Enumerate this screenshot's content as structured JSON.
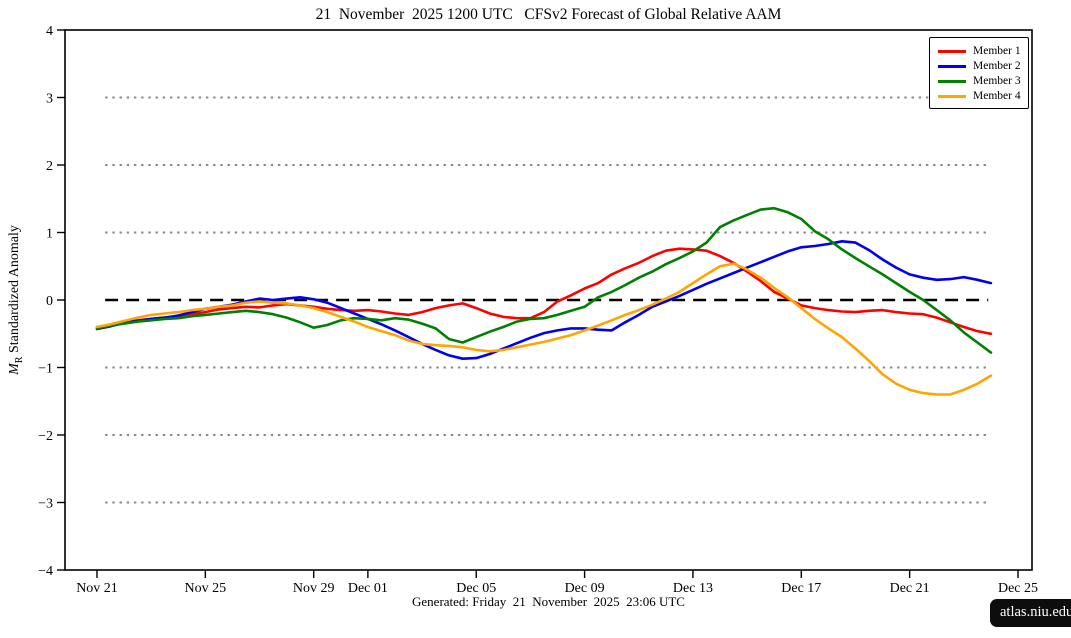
{
  "title": "21  November  2025 1200 UTC   CFSv2 Forecast of Global Relative AAM",
  "footer": "Generated: Friday  21  November  2025  23:06 UTC",
  "watermark": "atlas.niu.edu",
  "ylabel_symbol": "M",
  "ylabel_subscript": "R",
  "ylabel_main": " Standardized Anomaly",
  "chart_data": {
    "type": "line",
    "title": "21 November 2025 1200 UTC  CFSv2 Forecast of Global Relative AAM",
    "xlabel": "",
    "ylabel": "M_R Standardized Anomaly",
    "ylim": [
      -4,
      4
    ],
    "grid": "horizontal dotted gray lines at -3,-2,-1,1,2,3 and dashed black line at 0",
    "legend_position": "upper right",
    "x_start": 0,
    "x_step": 0.5,
    "x_unit": "days since Nov 21",
    "x_domain_days": [
      0,
      34
    ],
    "x_ticks": [
      {
        "day": 0,
        "label": "Nov 21"
      },
      {
        "day": 4,
        "label": "Nov 25"
      },
      {
        "day": 8,
        "label": "Nov 29"
      },
      {
        "day": 10,
        "label": "Dec 01"
      },
      {
        "day": 14,
        "label": "Dec 05"
      },
      {
        "day": 18,
        "label": "Dec 09"
      },
      {
        "day": 22,
        "label": "Dec 13"
      },
      {
        "day": 26,
        "label": "Dec 17"
      },
      {
        "day": 30,
        "label": "Dec 21"
      },
      {
        "day": 34,
        "label": "Dec 25"
      }
    ],
    "y_ticks": [
      {
        "value": 4,
        "label": "4"
      },
      {
        "value": 3,
        "label": "3"
      },
      {
        "value": 2,
        "label": "2"
      },
      {
        "value": 1,
        "label": "1"
      },
      {
        "value": 0,
        "label": "0"
      },
      {
        "value": -1,
        "label": "−1"
      },
      {
        "value": -2,
        "label": "−2"
      },
      {
        "value": -3,
        "label": "−3"
      },
      {
        "value": -4,
        "label": "−4"
      }
    ],
    "series": [
      {
        "name": "Member 1",
        "color": "#ff0000",
        "values": [
          -0.4,
          -0.37,
          -0.33,
          -0.3,
          -0.28,
          -0.26,
          -0.24,
          -0.21,
          -0.18,
          -0.14,
          -0.12,
          -0.1,
          -0.11,
          -0.08,
          -0.06,
          -0.08,
          -0.1,
          -0.13,
          -0.15,
          -0.16,
          -0.15,
          -0.17,
          -0.2,
          -0.22,
          -0.18,
          -0.12,
          -0.08,
          -0.05,
          -0.12,
          -0.2,
          -0.25,
          -0.27,
          -0.27,
          -0.18,
          -0.02,
          0.07,
          0.17,
          0.25,
          0.38,
          0.47,
          0.55,
          0.65,
          0.73,
          0.76,
          0.75,
          0.73,
          0.65,
          0.55,
          0.42,
          0.28,
          0.12,
          0.02,
          -0.08,
          -0.12,
          -0.15,
          -0.17,
          -0.18,
          -0.16,
          -0.15,
          -0.18,
          -0.2,
          -0.21,
          -0.26,
          -0.33,
          -0.4,
          -0.46,
          -0.5
        ]
      },
      {
        "name": "Member 2",
        "color": "#0000ee",
        "values": [
          -0.43,
          -0.39,
          -0.34,
          -0.31,
          -0.28,
          -0.26,
          -0.23,
          -0.18,
          -0.13,
          -0.1,
          -0.07,
          -0.02,
          0.02,
          0.0,
          0.02,
          0.04,
          0.01,
          -0.04,
          -0.12,
          -0.2,
          -0.28,
          -0.36,
          -0.45,
          -0.55,
          -0.65,
          -0.74,
          -0.82,
          -0.87,
          -0.86,
          -0.8,
          -0.72,
          -0.64,
          -0.56,
          -0.49,
          -0.45,
          -0.42,
          -0.42,
          -0.44,
          -0.45,
          -0.33,
          -0.22,
          -0.1,
          -0.02,
          0.06,
          0.15,
          0.24,
          0.32,
          0.4,
          0.48,
          0.56,
          0.64,
          0.72,
          0.78,
          0.8,
          0.83,
          0.87,
          0.85,
          0.74,
          0.6,
          0.48,
          0.38,
          0.33,
          0.3,
          0.31,
          0.34,
          0.3,
          0.25
        ]
      },
      {
        "name": "Member 3",
        "color": "#008000",
        "values": [
          -0.42,
          -0.38,
          -0.35,
          -0.32,
          -0.3,
          -0.28,
          -0.27,
          -0.24,
          -0.22,
          -0.2,
          -0.18,
          -0.16,
          -0.18,
          -0.21,
          -0.26,
          -0.33,
          -0.41,
          -0.37,
          -0.3,
          -0.27,
          -0.28,
          -0.3,
          -0.27,
          -0.29,
          -0.35,
          -0.42,
          -0.58,
          -0.63,
          -0.55,
          -0.47,
          -0.4,
          -0.32,
          -0.28,
          -0.27,
          -0.22,
          -0.16,
          -0.1,
          0.04,
          0.12,
          0.22,
          0.33,
          0.42,
          0.53,
          0.62,
          0.72,
          0.85,
          1.08,
          1.18,
          1.26,
          1.34,
          1.36,
          1.3,
          1.2,
          1.02,
          0.9,
          0.75,
          0.62,
          0.5,
          0.38,
          0.25,
          0.12,
          0.0,
          -0.15,
          -0.3,
          -0.48,
          -0.63,
          -0.78
        ]
      },
      {
        "name": "Member 4",
        "color": "#ffa500",
        "values": [
          -0.4,
          -0.36,
          -0.31,
          -0.26,
          -0.22,
          -0.2,
          -0.18,
          -0.15,
          -0.13,
          -0.1,
          -0.08,
          -0.04,
          -0.02,
          -0.04,
          -0.05,
          -0.08,
          -0.12,
          -0.18,
          -0.25,
          -0.32,
          -0.4,
          -0.46,
          -0.52,
          -0.6,
          -0.65,
          -0.67,
          -0.68,
          -0.7,
          -0.74,
          -0.76,
          -0.74,
          -0.7,
          -0.66,
          -0.62,
          -0.57,
          -0.52,
          -0.45,
          -0.38,
          -0.3,
          -0.22,
          -0.15,
          -0.07,
          0.02,
          0.12,
          0.25,
          0.38,
          0.5,
          0.54,
          0.45,
          0.33,
          0.18,
          0.04,
          -0.12,
          -0.28,
          -0.42,
          -0.55,
          -0.72,
          -0.9,
          -1.1,
          -1.24,
          -1.33,
          -1.38,
          -1.4,
          -1.4,
          -1.33,
          -1.24,
          -1.12
        ]
      }
    ]
  }
}
